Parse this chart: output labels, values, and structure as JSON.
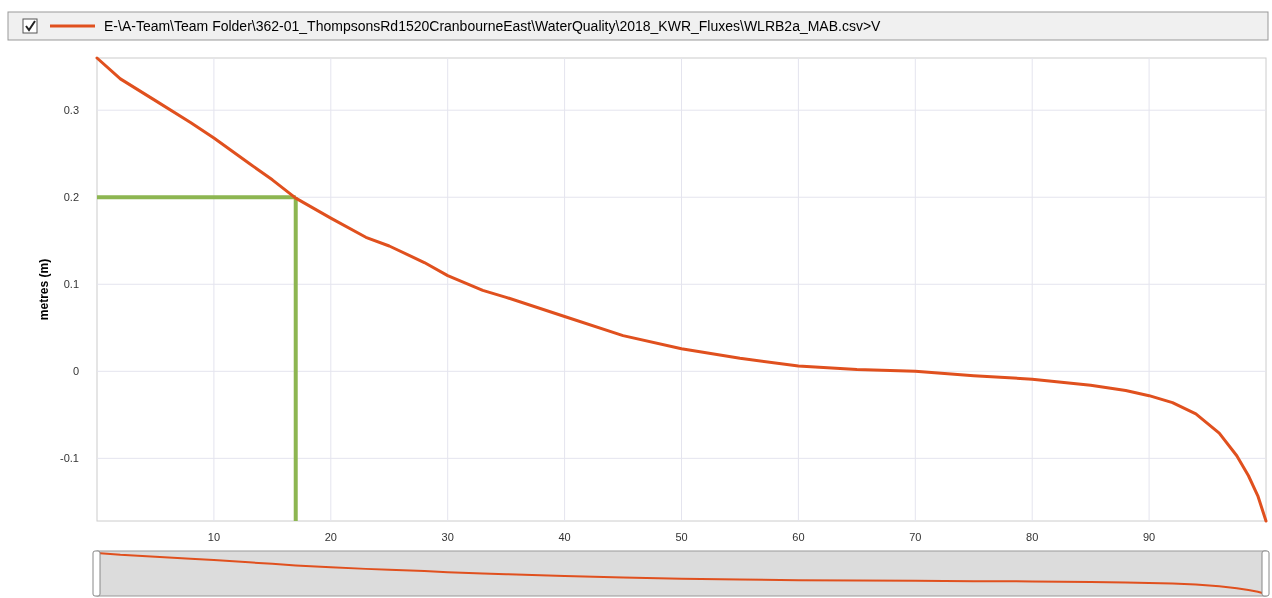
{
  "chart_data": {
    "type": "line",
    "ylabel": "metres (m)",
    "x": [
      0,
      2,
      5,
      8,
      10,
      13,
      15,
      17,
      20,
      23,
      25,
      28,
      30,
      33,
      35,
      40,
      45,
      50,
      55,
      60,
      65,
      70,
      75,
      80,
      85,
      88,
      90,
      92,
      94,
      96,
      97.5,
      98.5,
      99.3,
      100
    ],
    "series": [
      {
        "name": "E-\\A-Team\\Team Folder\\362-01_ThompsonsRd1520CranbourneEast\\WaterQuality\\2018_KWR_Fluxes\\WLRB2a_MAB.csv>V",
        "color": "#e0501e",
        "values": [
          0.36,
          0.336,
          0.311,
          0.286,
          0.268,
          0.239,
          0.22,
          0.199,
          0.176,
          0.154,
          0.144,
          0.125,
          0.11,
          0.093,
          0.085,
          0.063,
          0.041,
          0.026,
          0.015,
          0.006,
          0.002,
          0.0,
          -0.005,
          -0.009,
          -0.016,
          -0.022,
          -0.028,
          -0.036,
          -0.049,
          -0.071,
          -0.097,
          -0.12,
          -0.143,
          -0.172
        ]
      }
    ],
    "xlim": [
      0,
      100
    ],
    "xticks": [
      10,
      20,
      30,
      40,
      50,
      60,
      70,
      80,
      90
    ],
    "ylim": [
      -0.172,
      0.36
    ],
    "yticks": [
      -0.1,
      0,
      0.1,
      0.2,
      0.3
    ],
    "grid": true,
    "legend": "top left",
    "marker": "none",
    "line_style": "solid",
    "ref_lines": [
      {
        "axis": "y",
        "value": 0.2,
        "color": "#8db651"
      },
      {
        "axis": "x",
        "value": 17,
        "color": "#8db651"
      }
    ]
  }
}
